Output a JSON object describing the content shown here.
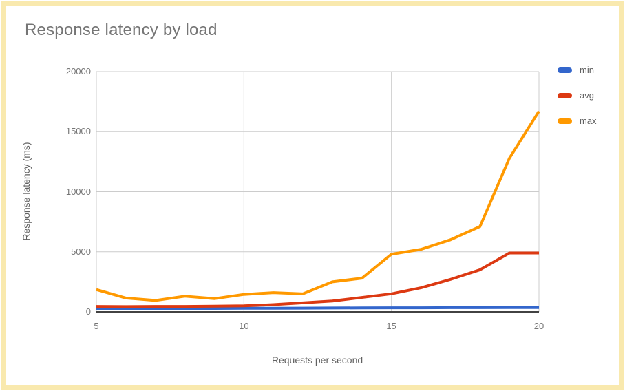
{
  "page": {
    "border_color": "#F9E9AE",
    "background_color": "#FFFFFF"
  },
  "colors": {
    "gridline": "#CCCCCC",
    "axis_line": "#424242",
    "tick_label": "#757575",
    "axis_title": "#616161",
    "chart_title": "#757575"
  },
  "chart_data": {
    "type": "line",
    "title": "Response latency by load",
    "xlabel": "Requests per second",
    "ylabel": "Response latency (ms)",
    "x": [
      5,
      6,
      7,
      8,
      9,
      10,
      11,
      12,
      13,
      14,
      15,
      16,
      17,
      18,
      19,
      20
    ],
    "series": [
      {
        "name": "min",
        "color": "#3366CC",
        "values": [
          270,
          270,
          280,
          280,
          290,
          300,
          300,
          310,
          320,
          330,
          340,
          340,
          350,
          350,
          360,
          360
        ]
      },
      {
        "name": "avg",
        "color": "#DC3912",
        "values": [
          450,
          440,
          450,
          450,
          470,
          500,
          600,
          750,
          900,
          1200,
          1500,
          2000,
          2700,
          3500,
          4900,
          4900
        ]
      },
      {
        "name": "max",
        "color": "#FF9900",
        "values": [
          1850,
          1150,
          950,
          1300,
          1100,
          1450,
          1600,
          1500,
          2500,
          2800,
          4800,
          5200,
          6000,
          7100,
          12800,
          16700
        ]
      }
    ],
    "xlim": [
      5,
      20
    ],
    "ylim": [
      0,
      20000
    ],
    "x_ticks": [
      5,
      10,
      15,
      20
    ],
    "y_ticks": [
      0,
      5000,
      10000,
      15000,
      20000
    ],
    "grid": true,
    "legend_position": "right",
    "point_markers": false
  }
}
